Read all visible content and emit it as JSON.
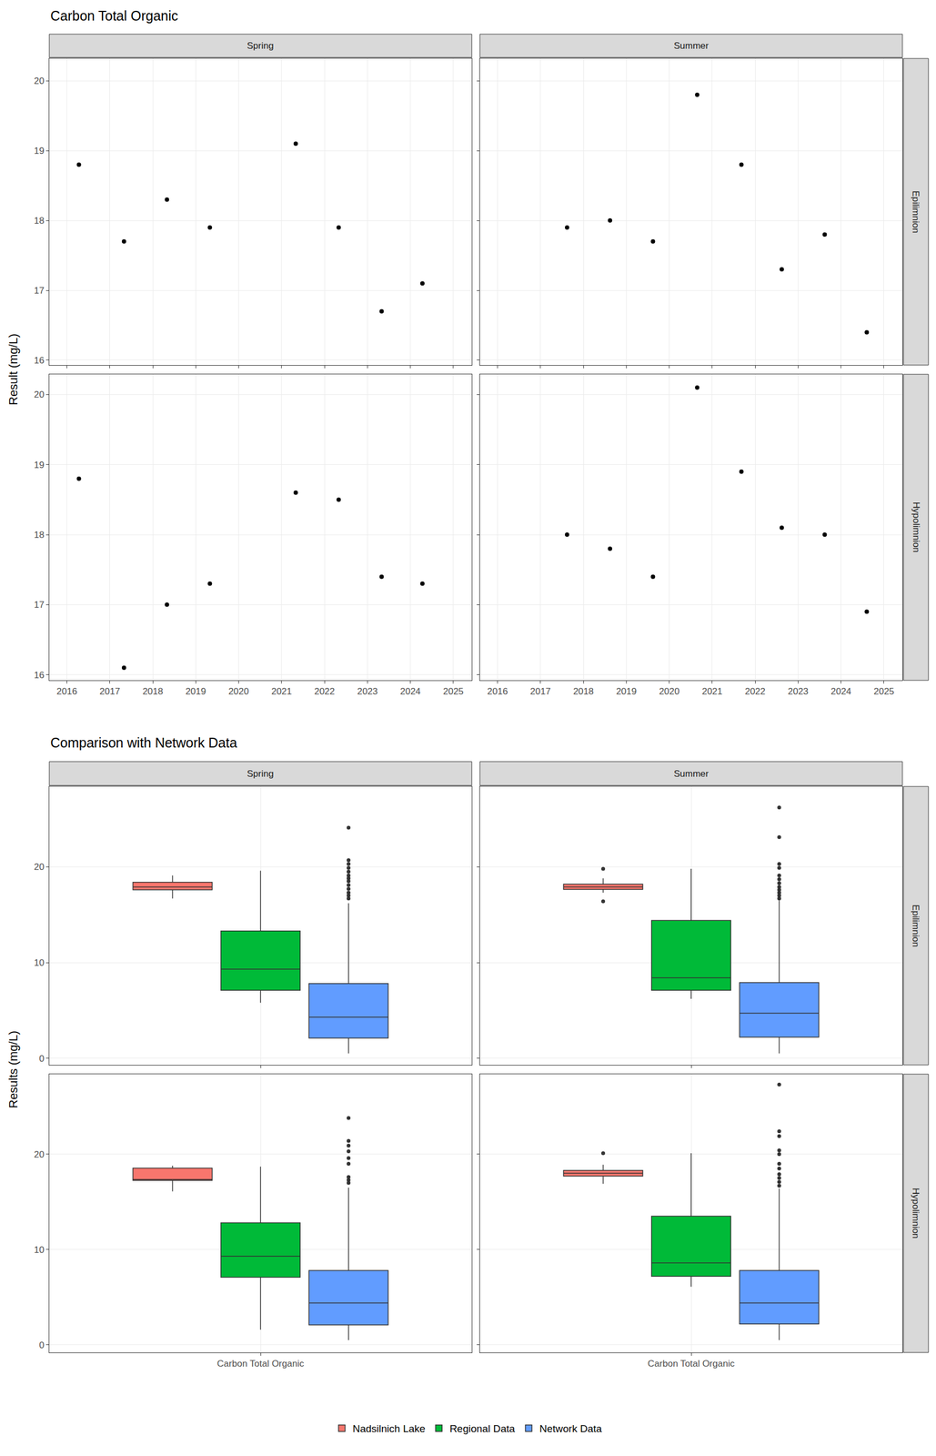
{
  "chart_data": [
    {
      "type": "scatter",
      "title": "Carbon Total Organic",
      "y_label": "Result (mg/L)",
      "color": "#000000",
      "grid": true,
      "columns": [
        "Spring",
        "Summer"
      ],
      "rows": [
        "Epilimnion",
        "Hypolimnion"
      ],
      "xlim": [
        2015.59,
        2025.43
      ],
      "xticks": [
        2016,
        2017,
        2018,
        2019,
        2020,
        2021,
        2022,
        2023,
        2024,
        2025
      ],
      "panels": [
        {
          "column": "Spring",
          "row": "Epilimnion",
          "ylim": [
            15.93,
            20.32
          ],
          "yticks": [
            16,
            17,
            18,
            19,
            20
          ],
          "x": [
            2016.28,
            2017.33,
            2018.33,
            2019.33,
            2021.33,
            2022.33,
            2023.33,
            2024.28
          ],
          "values": [
            18.8,
            17.7,
            18.3,
            17.9,
            19.1,
            17.9,
            16.7,
            17.1
          ]
        },
        {
          "column": "Summer",
          "row": "Epilimnion",
          "ylim": [
            15.93,
            20.32
          ],
          "yticks": [
            16,
            17,
            18,
            19,
            20
          ],
          "x": [
            2017.62,
            2018.62,
            2019.62,
            2020.65,
            2021.68,
            2022.62,
            2023.62,
            2024.6
          ],
          "values": [
            17.9,
            18.0,
            17.7,
            19.8,
            18.8,
            17.3,
            17.8,
            16.4
          ]
        },
        {
          "column": "Spring",
          "row": "Hypolimnion",
          "ylim": [
            15.92,
            20.29
          ],
          "yticks": [
            16,
            17,
            18,
            19,
            20
          ],
          "x": [
            2016.28,
            2017.33,
            2018.33,
            2019.33,
            2021.33,
            2022.33,
            2023.33,
            2024.28
          ],
          "values": [
            18.8,
            16.1,
            17.0,
            17.3,
            18.6,
            18.5,
            17.4,
            17.3
          ]
        },
        {
          "column": "Summer",
          "row": "Hypolimnion",
          "ylim": [
            15.92,
            20.29
          ],
          "yticks": [
            16,
            17,
            18,
            19,
            20
          ],
          "x": [
            2017.62,
            2018.62,
            2019.62,
            2020.65,
            2021.68,
            2022.62,
            2023.62,
            2024.6
          ],
          "values": [
            18.0,
            17.8,
            17.4,
            20.1,
            18.9,
            18.1,
            18.0,
            16.9
          ]
        }
      ]
    },
    {
      "type": "box",
      "title": "Comparison with Network Data",
      "y_label": "Results (mg/L)",
      "grid": true,
      "legend": "bottom",
      "columns": [
        "Spring",
        "Summer"
      ],
      "rows": [
        "Epilimnion",
        "Hypolimnion"
      ],
      "categories": [
        "Carbon Total Organic"
      ],
      "series": [
        {
          "name": "Nadsilnich Lake",
          "color": "#F8766D"
        },
        {
          "name": "Regional Data",
          "color": "#00BA38"
        },
        {
          "name": "Network Data",
          "color": "#619CFF"
        }
      ],
      "panels": [
        {
          "column": "Spring",
          "row": "Epilimnion",
          "ylim": [
            -0.7,
            28.4
          ],
          "yticks": [
            0,
            10,
            20
          ],
          "boxes": [
            {
              "q1": 17.6,
              "median": 17.9,
              "q3": 18.4,
              "lower": 16.7,
              "upper": 19.1,
              "outliers": []
            },
            {
              "q1": 7.1,
              "median": 9.3,
              "q3": 13.3,
              "lower": 5.8,
              "upper": 19.6,
              "outliers": []
            },
            {
              "q1": 2.1,
              "median": 4.3,
              "q3": 7.8,
              "lower": 0.5,
              "upper": 16.2,
              "outliers": [
                24.1,
                20.7,
                20.3,
                19.9,
                19.5,
                19.1,
                18.8,
                18.5,
                18.1,
                17.7,
                17.3,
                17.0,
                16.7
              ]
            }
          ]
        },
        {
          "column": "Summer",
          "row": "Epilimnion",
          "ylim": [
            -0.7,
            28.4
          ],
          "yticks": [
            0,
            10,
            20
          ],
          "boxes": [
            {
              "q1": 17.65,
              "median": 17.9,
              "q3": 18.2,
              "lower": 17.3,
              "upper": 18.8,
              "outliers": [
                19.8,
                16.4
              ]
            },
            {
              "q1": 7.1,
              "median": 8.4,
              "q3": 14.4,
              "lower": 6.2,
              "upper": 19.8,
              "outliers": []
            },
            {
              "q1": 2.2,
              "median": 4.7,
              "q3": 7.9,
              "lower": 0.5,
              "upper": 16.5,
              "outliers": [
                26.2,
                23.1,
                20.3,
                19.9,
                19.1,
                18.7,
                18.3,
                17.9,
                17.6,
                17.3,
                17.0,
                16.7
              ]
            }
          ]
        },
        {
          "column": "Spring",
          "row": "Hypolimnion",
          "ylim": [
            -0.8,
            28.4
          ],
          "yticks": [
            0,
            10,
            20
          ],
          "boxes": [
            {
              "q1": 17.25,
              "median": 17.35,
              "q3": 18.55,
              "lower": 16.1,
              "upper": 18.8,
              "outliers": []
            },
            {
              "q1": 7.1,
              "median": 9.3,
              "q3": 12.8,
              "lower": 1.6,
              "upper": 18.7,
              "outliers": []
            },
            {
              "q1": 2.1,
              "median": 4.4,
              "q3": 7.8,
              "lower": 0.5,
              "upper": 16.5,
              "outliers": [
                23.8,
                21.4,
                20.9,
                20.3,
                19.6,
                19.0,
                17.6,
                17.3,
                17.0
              ]
            }
          ]
        },
        {
          "column": "Summer",
          "row": "Hypolimnion",
          "ylim": [
            -0.8,
            28.4
          ],
          "yticks": [
            0,
            10,
            20
          ],
          "boxes": [
            {
              "q1": 17.7,
              "median": 18.0,
              "q3": 18.3,
              "lower": 16.9,
              "upper": 18.9,
              "outliers": [
                20.1
              ]
            },
            {
              "q1": 7.2,
              "median": 8.6,
              "q3": 13.5,
              "lower": 6.1,
              "upper": 20.1,
              "outliers": []
            },
            {
              "q1": 2.2,
              "median": 4.4,
              "q3": 7.8,
              "lower": 0.5,
              "upper": 16.4,
              "outliers": [
                27.3,
                22.4,
                21.9,
                20.4,
                20.0,
                19.0,
                18.5,
                17.9,
                17.5,
                17.1,
                16.7
              ]
            }
          ]
        }
      ]
    }
  ]
}
